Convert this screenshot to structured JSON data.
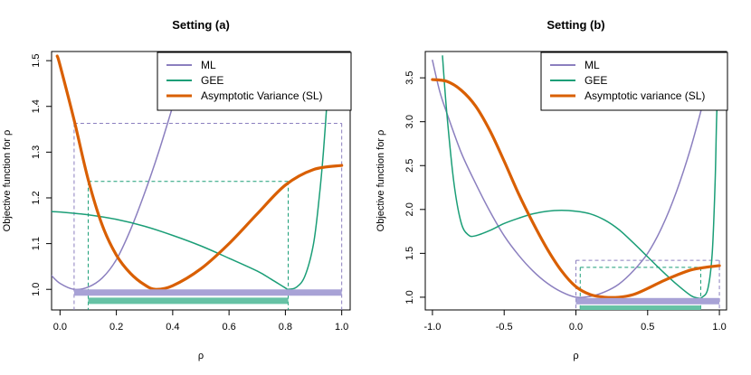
{
  "chart_data": [
    {
      "type": "line",
      "title": "Setting (a)",
      "xlabel": "ρ",
      "ylabel": "Objective function for ρ",
      "xlim": [
        -0.03,
        1.03
      ],
      "ylim": [
        0.955,
        1.52
      ],
      "xticks": [
        0.0,
        0.2,
        0.4,
        0.6,
        0.8,
        1.0
      ],
      "xtick_labels": [
        "0.0",
        "0.2",
        "0.4",
        "0.6",
        "0.8",
        "1.0"
      ],
      "yticks": [
        1.0,
        1.1,
        1.2,
        1.3,
        1.4,
        1.5
      ],
      "ytick_labels": [
        "1.0",
        "1.1",
        "1.2",
        "1.3",
        "1.4",
        "1.5"
      ],
      "legend_position": "top-right",
      "series": [
        {
          "name": "ML",
          "color": "#8B7FBF",
          "linewidth": "thin",
          "points": [
            [
              -0.03,
              1.03
            ],
            [
              0.0,
              1.013
            ],
            [
              0.05,
              1.0
            ],
            [
              0.1,
              1.005
            ],
            [
              0.15,
              1.025
            ],
            [
              0.2,
              1.065
            ],
            [
              0.25,
              1.13
            ],
            [
              0.3,
              1.21
            ],
            [
              0.35,
              1.3
            ],
            [
              0.4,
              1.4
            ],
            [
              0.435,
              1.47
            ]
          ]
        },
        {
          "name": "GEE",
          "color": "#1B9E77",
          "linewidth": "thin",
          "points": [
            [
              -0.03,
              1.17
            ],
            [
              0.0,
              1.169
            ],
            [
              0.1,
              1.163
            ],
            [
              0.2,
              1.153
            ],
            [
              0.3,
              1.138
            ],
            [
              0.4,
              1.118
            ],
            [
              0.5,
              1.095
            ],
            [
              0.6,
              1.068
            ],
            [
              0.7,
              1.04
            ],
            [
              0.75,
              1.022
            ],
            [
              0.8,
              1.003
            ],
            [
              0.81,
              1.0
            ],
            [
              0.84,
              1.005
            ],
            [
              0.87,
              1.03
            ],
            [
              0.9,
              1.1
            ],
            [
              0.92,
              1.2
            ],
            [
              0.935,
              1.3
            ],
            [
              0.95,
              1.43
            ]
          ]
        },
        {
          "name": "Asymptotic Variance (SL)",
          "color": "#D95F02",
          "linewidth": "thick",
          "points": [
            [
              -0.01,
              1.51
            ],
            [
              0.0,
              1.49
            ],
            [
              0.05,
              1.37
            ],
            [
              0.1,
              1.24
            ],
            [
              0.15,
              1.14
            ],
            [
              0.2,
              1.075
            ],
            [
              0.25,
              1.035
            ],
            [
              0.3,
              1.01
            ],
            [
              0.34,
              1.0
            ],
            [
              0.4,
              1.008
            ],
            [
              0.5,
              1.045
            ],
            [
              0.6,
              1.1
            ],
            [
              0.7,
              1.165
            ],
            [
              0.8,
              1.228
            ],
            [
              0.9,
              1.262
            ],
            [
              1.0,
              1.271
            ]
          ]
        }
      ],
      "reference_lines": [
        {
          "color": "#8B7FBF",
          "h_level": 1.363,
          "h_x": [
            0.05,
            1.0
          ],
          "v_x": [
            0.05,
            1.0
          ]
        },
        {
          "color": "#1B9E77",
          "h_level": 1.236,
          "h_x": [
            0.1,
            0.81
          ],
          "v_x": [
            0.1,
            0.81
          ]
        }
      ],
      "interval_bars": [
        {
          "color": "#A8A2D6",
          "x": [
            0.05,
            1.0
          ],
          "y": 0.993
        },
        {
          "color": "#66C2A5",
          "x": [
            0.1,
            0.81
          ],
          "y": 0.975
        }
      ]
    },
    {
      "type": "line",
      "title": "Setting (b)",
      "xlabel": "ρ",
      "ylabel": "Objective function for ρ",
      "xlim": [
        -1.05,
        1.05
      ],
      "ylim": [
        0.855,
        3.8
      ],
      "xticks": [
        -1.0,
        -0.5,
        0.0,
        0.5,
        1.0
      ],
      "xtick_labels": [
        "-1.0",
        "-0.5",
        "0.0",
        "0.5",
        "1.0"
      ],
      "yticks": [
        1.0,
        1.5,
        2.0,
        2.5,
        3.0,
        3.5
      ],
      "ytick_labels": [
        "1.0",
        "1.5",
        "2.0",
        "2.5",
        "3.0",
        "3.5"
      ],
      "legend_position": "top-right",
      "series": [
        {
          "name": "ML",
          "color": "#8B7FBF",
          "linewidth": "thin",
          "points": [
            [
              -1.0,
              3.7
            ],
            [
              -0.95,
              3.35
            ],
            [
              -0.9,
              3.1
            ],
            [
              -0.8,
              2.65
            ],
            [
              -0.7,
              2.3
            ],
            [
              -0.6,
              1.98
            ],
            [
              -0.5,
              1.7
            ],
            [
              -0.4,
              1.48
            ],
            [
              -0.3,
              1.3
            ],
            [
              -0.2,
              1.16
            ],
            [
              -0.1,
              1.06
            ],
            [
              0.0,
              1.0
            ],
            [
              0.1,
              1.01
            ],
            [
              0.2,
              1.06
            ],
            [
              0.3,
              1.15
            ],
            [
              0.4,
              1.3
            ],
            [
              0.5,
              1.5
            ],
            [
              0.6,
              1.8
            ],
            [
              0.7,
              2.2
            ],
            [
              0.8,
              2.7
            ],
            [
              0.9,
              3.3
            ],
            [
              0.95,
              3.62
            ]
          ]
        },
        {
          "name": "GEE",
          "color": "#1B9E77",
          "linewidth": "thin",
          "points": [
            [
              -0.93,
              3.75
            ],
            [
              -0.9,
              3.1
            ],
            [
              -0.85,
              2.3
            ],
            [
              -0.8,
              1.85
            ],
            [
              -0.75,
              1.71
            ],
            [
              -0.7,
              1.7
            ],
            [
              -0.6,
              1.76
            ],
            [
              -0.5,
              1.84
            ],
            [
              -0.4,
              1.9
            ],
            [
              -0.3,
              1.95
            ],
            [
              -0.2,
              1.98
            ],
            [
              -0.1,
              1.99
            ],
            [
              0.0,
              1.98
            ],
            [
              0.1,
              1.95
            ],
            [
              0.2,
              1.88
            ],
            [
              0.3,
              1.77
            ],
            [
              0.4,
              1.62
            ],
            [
              0.5,
              1.46
            ],
            [
              0.6,
              1.3
            ],
            [
              0.7,
              1.15
            ],
            [
              0.8,
              1.02
            ],
            [
              0.85,
              0.99
            ],
            [
              0.88,
              1.0
            ],
            [
              0.92,
              1.1
            ],
            [
              0.95,
              1.5
            ],
            [
              0.97,
              2.3
            ],
            [
              0.98,
              3.0
            ],
            [
              0.99,
              3.5
            ]
          ]
        },
        {
          "name": "Asymptotic variance (SL)",
          "color": "#D95F02",
          "linewidth": "thick",
          "points": [
            [
              -1.0,
              3.48
            ],
            [
              -0.9,
              3.46
            ],
            [
              -0.8,
              3.36
            ],
            [
              -0.7,
              3.18
            ],
            [
              -0.6,
              2.9
            ],
            [
              -0.5,
              2.55
            ],
            [
              -0.4,
              2.18
            ],
            [
              -0.3,
              1.85
            ],
            [
              -0.2,
              1.55
            ],
            [
              -0.1,
              1.3
            ],
            [
              0.0,
              1.12
            ],
            [
              0.1,
              1.03
            ],
            [
              0.2,
              1.0
            ],
            [
              0.3,
              1.0
            ],
            [
              0.4,
              1.03
            ],
            [
              0.5,
              1.1
            ],
            [
              0.6,
              1.18
            ],
            [
              0.7,
              1.25
            ],
            [
              0.8,
              1.31
            ],
            [
              0.9,
              1.34
            ],
            [
              1.0,
              1.36
            ]
          ]
        }
      ],
      "reference_lines": [
        {
          "color": "#8B7FBF",
          "h_level": 1.42,
          "h_x": [
            0.0,
            1.0
          ],
          "v_x": [
            0.0,
            1.0
          ]
        },
        {
          "color": "#1B9E77",
          "h_level": 1.34,
          "h_x": [
            0.03,
            0.87
          ],
          "v_x": [
            0.03,
            0.87
          ]
        }
      ],
      "interval_bars": [
        {
          "color": "#A8A2D6",
          "x": [
            0.0,
            1.0
          ],
          "y": 0.955
        },
        {
          "color": "#66C2A5",
          "x": [
            0.03,
            0.87
          ],
          "y": 0.87
        }
      ]
    }
  ]
}
